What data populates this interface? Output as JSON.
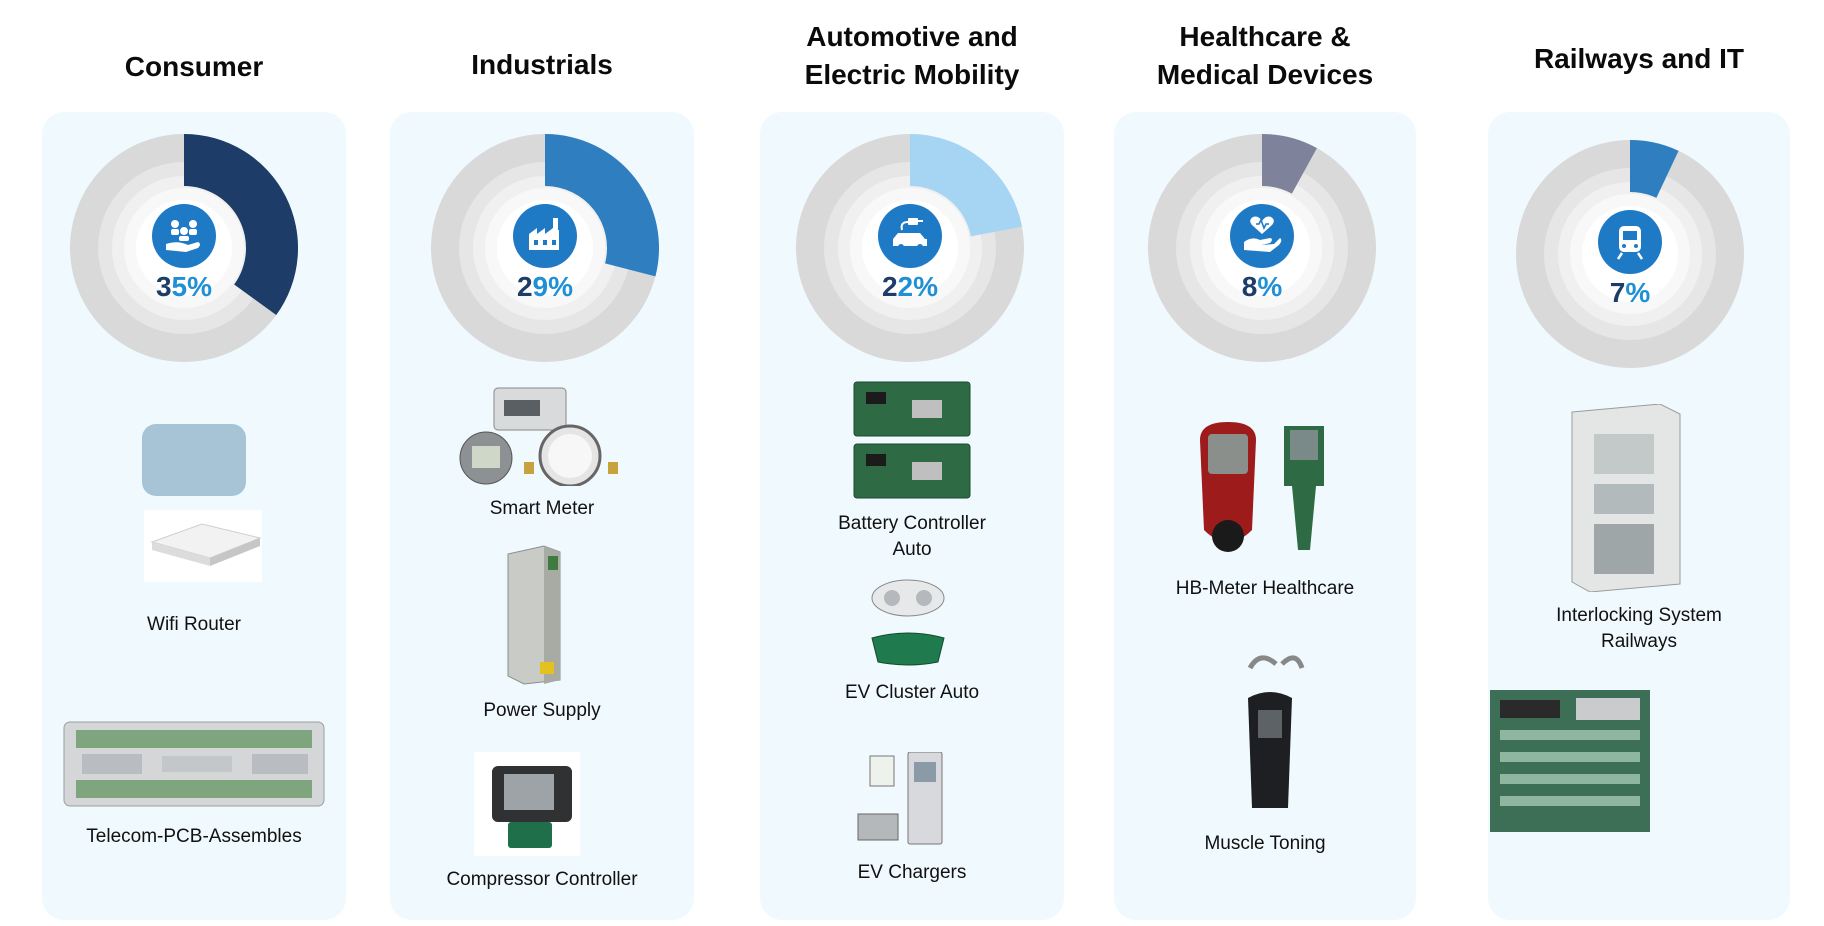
{
  "chart_data": {
    "type": "pie",
    "categories": [
      "Consumer",
      "Industrials",
      "Automotive and Electric Mobility",
      "Healthcare & Medical Devices",
      "Railways and IT"
    ],
    "values": [
      35,
      29,
      22,
      8,
      7
    ],
    "unit": "%",
    "colors": [
      "#1d3c68",
      "#2f7fc0",
      "#a6d5f3",
      "#7f829b",
      "#2f7fc0"
    ]
  },
  "segments": [
    {
      "title_lines": [
        "Consumer"
      ],
      "percent_label": "35%",
      "icon": "hand-holding-people-icon",
      "items": [
        {
          "label_lines": [
            "Wifi Router"
          ],
          "image": "wifi-router-image"
        },
        {
          "label_lines": [
            "Telecom-PCB-Assembles"
          ],
          "image": "telecom-pcb-image"
        }
      ]
    },
    {
      "title_lines": [
        "Industrials"
      ],
      "percent_label": "29%",
      "icon": "factory-icon",
      "items": [
        {
          "label_lines": [
            "Smart Meter"
          ],
          "image": "smart-meter-image"
        },
        {
          "label_lines": [
            "Power Supply"
          ],
          "image": "power-supply-image"
        },
        {
          "label_lines": [
            "Compressor Controller"
          ],
          "image": "compressor-controller-image"
        }
      ]
    },
    {
      "title_lines": [
        "Automotive and",
        "Electric Mobility"
      ],
      "percent_label": "22%",
      "icon": "electric-car-icon",
      "items": [
        {
          "label_lines": [
            "Battery Controller",
            "Auto"
          ],
          "image": "battery-controller-image"
        },
        {
          "label_lines": [
            "EV Cluster Auto"
          ],
          "image": "ev-cluster-image"
        },
        {
          "label_lines": [
            "EV Chargers"
          ],
          "image": "ev-chargers-image"
        }
      ]
    },
    {
      "title_lines": [
        "Healthcare &",
        "Medical Devices"
      ],
      "percent_label": "8%",
      "icon": "heart-hand-icon",
      "items": [
        {
          "label_lines": [
            "HB-Meter Healthcare"
          ],
          "image": "hb-meter-image"
        },
        {
          "label_lines": [
            "Muscle Toning"
          ],
          "image": "muscle-toning-image"
        }
      ]
    },
    {
      "title_lines": [
        "Railways and IT"
      ],
      "percent_label": "7%",
      "icon": "train-icon",
      "items": [
        {
          "label_lines": [
            "Interlocking System",
            "Railways"
          ],
          "image": "interlocking-system-image"
        },
        {
          "label_lines": [],
          "image": "railway-pcb-image"
        }
      ]
    }
  ]
}
